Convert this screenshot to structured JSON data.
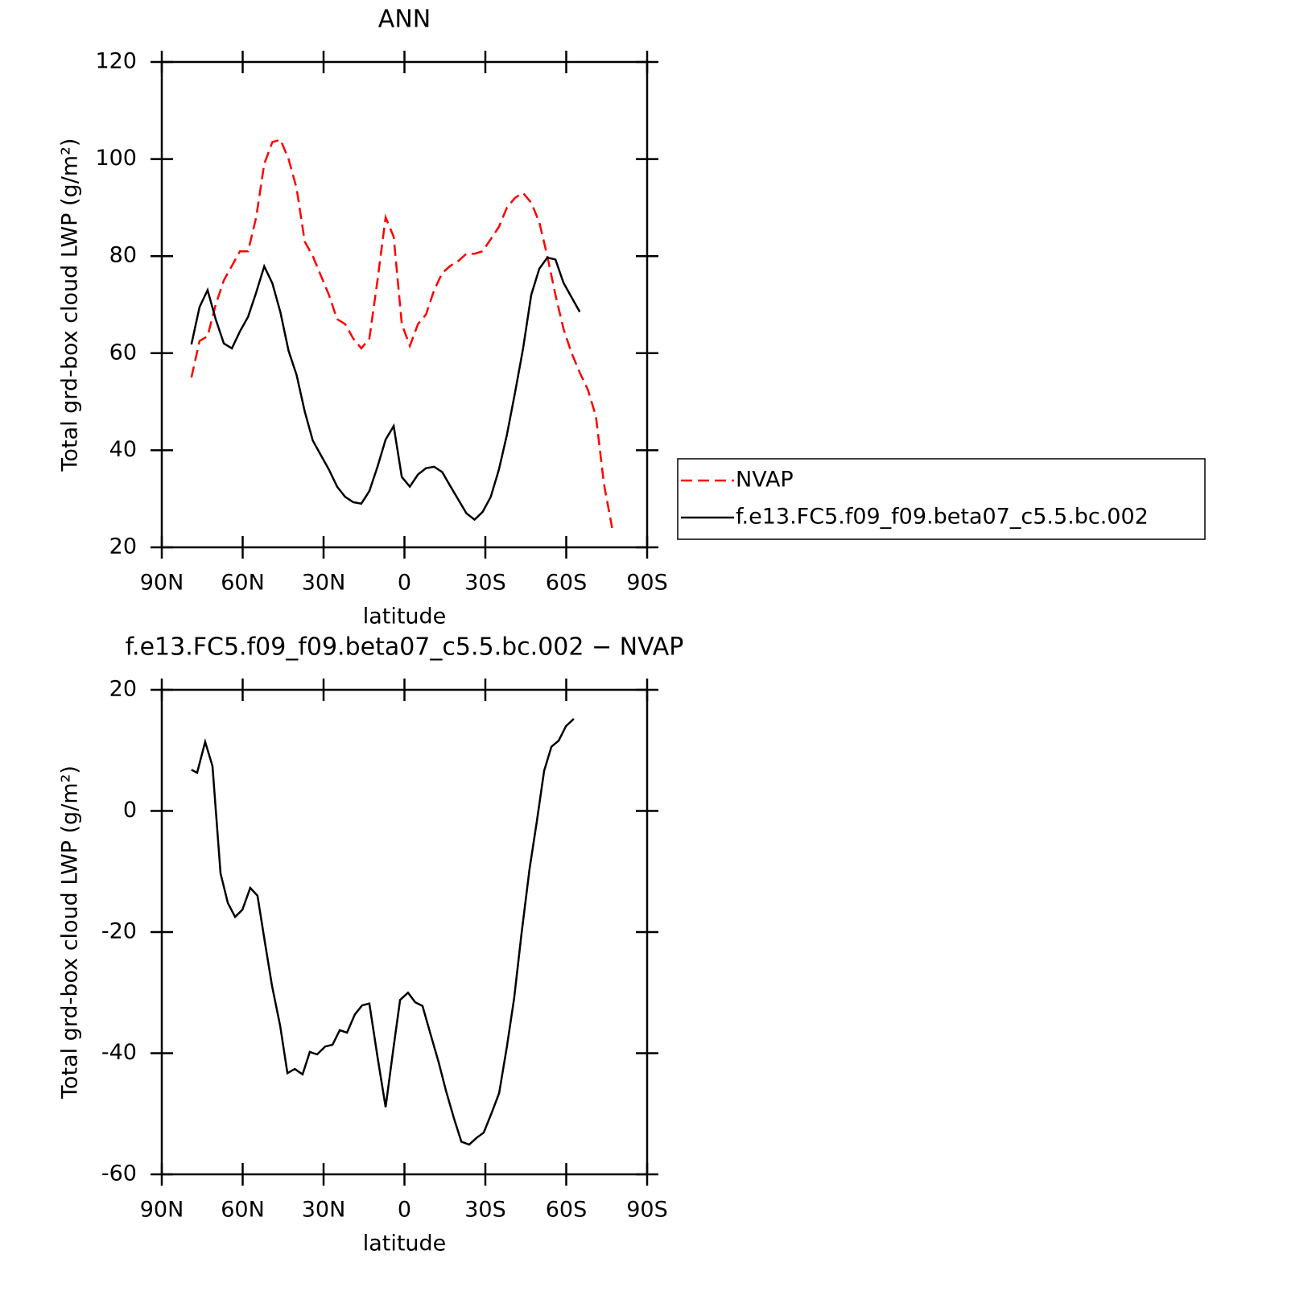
{
  "chart_data": [
    {
      "type": "line",
      "title": "ANN",
      "xlabel": "latitude",
      "ylabel": "Total grd-box cloud LWP (g/m²)",
      "x": [
        79,
        76,
        73,
        70,
        67,
        64,
        61,
        58,
        55,
        52,
        49,
        46,
        43,
        40,
        37,
        34,
        31,
        28,
        25,
        22,
        19,
        16,
        13,
        10,
        7,
        4,
        1,
        -2,
        -5,
        -8,
        -11,
        -14,
        -17,
        -20,
        -23,
        -26,
        -29,
        -32,
        -35,
        -38,
        -41,
        -44,
        -47,
        -50,
        -53,
        -56,
        -59,
        -62,
        -65,
        -68,
        -71,
        -74,
        -77
      ],
      "xlim": [
        90,
        -90
      ],
      "xticks": [
        {
          "value": 90,
          "label": "90N"
        },
        {
          "value": 60,
          "label": "60N"
        },
        {
          "value": 30,
          "label": "30N"
        },
        0,
        {
          "value": -30,
          "label": "30S"
        },
        {
          "value": -60,
          "label": "60S"
        },
        {
          "value": -90,
          "label": "90S"
        }
      ],
      "ylim": [
        20,
        120
      ],
      "yticks": [
        20,
        40,
        60,
        80,
        100,
        120
      ],
      "legend": "right",
      "series": [
        {
          "name": "NVAP",
          "color": "#ff0000",
          "linestyle": "dashed",
          "values": [
            55,
            62.5,
            63.5,
            70,
            75,
            78,
            81,
            81,
            88,
            99,
            103.5,
            104,
            100,
            94,
            83,
            80,
            76,
            72,
            67,
            66,
            63,
            61,
            63,
            75,
            88,
            84,
            66,
            61.5,
            66,
            68,
            73,
            76.5,
            78,
            79,
            80.5,
            80.5,
            81,
            83.5,
            86,
            90,
            92,
            93,
            91,
            87,
            80,
            72,
            65,
            60,
            56,
            52.5,
            47,
            33,
            24
          ]
        },
        {
          "name": "f.e13.FC5.f09_f09.beta07_c5.5.bc.002",
          "color": "#000000",
          "linestyle": "solid",
          "values": [
            61.8,
            69.5,
            73,
            67,
            62,
            61,
            64.5,
            67.5,
            72.5,
            77.9,
            74.4,
            68.4,
            60.5,
            55.5,
            48,
            42,
            39,
            36,
            32.5,
            30.4,
            29.3,
            29,
            31.6,
            36.6,
            42.2,
            45,
            34.5,
            32.5,
            35,
            36.3,
            36.6,
            35.5,
            32.6,
            29.8,
            27,
            25.7,
            27.3,
            30.4,
            36,
            43.2,
            51.8,
            61,
            72,
            77.4,
            79.7,
            79.3,
            74.5,
            71.5,
            68.5,
            null,
            null,
            null,
            null
          ]
        }
      ]
    },
    {
      "type": "line",
      "title": "f.e13.FC5.f09_f09.beta07_c5.5.bc.002 − NVAP",
      "xlabel": "latitude",
      "ylabel": "Total grd-box cloud LWP (g/m²)",
      "x": [
        79,
        76.9,
        73.9,
        71.2,
        68.2,
        65.5,
        62.8,
        60.1,
        57.2,
        54.5,
        51.8,
        49.1,
        46.1,
        43.4,
        40.7,
        37.8,
        35.1,
        32.4,
        29.4,
        26.7,
        24,
        21.3,
        18.4,
        15.7,
        13,
        10,
        7,
        4,
        1.6,
        -1.3,
        -4,
        -6.7,
        -9.7,
        -12.7,
        -15.4,
        -18.4,
        -21.1,
        -24,
        -26.7,
        -29.4,
        -32.4,
        -35.1,
        -38,
        -40.7,
        -43.4,
        -46.4,
        -49.1,
        -51.8,
        -54.5,
        -57.2,
        -59.9,
        -62.8
      ],
      "xlim": [
        90,
        -90
      ],
      "xticks": [
        {
          "value": 90,
          "label": "90N"
        },
        {
          "value": 60,
          "label": "60N"
        },
        {
          "value": 30,
          "label": "30N"
        },
        0,
        {
          "value": -30,
          "label": "30S"
        },
        {
          "value": -60,
          "label": "60S"
        },
        {
          "value": -90,
          "label": "90S"
        }
      ],
      "ylim": [
        -60,
        20
      ],
      "yticks": [
        -60,
        -40,
        -20,
        0,
        20
      ],
      "series": [
        {
          "color": "#000000",
          "linestyle": "solid",
          "values": [
            6.8,
            6.3,
            11.4,
            7.4,
            -10.3,
            -15.2,
            -17.5,
            -16.3,
            -12.7,
            -14,
            -21.6,
            -28.9,
            -35.5,
            -43.3,
            -42.6,
            -43.5,
            -39.8,
            -40.2,
            -38.9,
            -38.6,
            -36.2,
            -36.6,
            -33.6,
            -32.1,
            -31.8,
            -40.6,
            -48.9,
            -38.9,
            -31.2,
            -30,
            -31.6,
            -32.2,
            -36.9,
            -41.5,
            -46.2,
            -50.8,
            -54.6,
            -55.1,
            -54,
            -53.1,
            -49.8,
            -46.6,
            -38.9,
            -30.9,
            -20.3,
            -9.6,
            -1.7,
            6.6,
            10.6,
            11.6,
            14,
            15.2
          ]
        }
      ]
    }
  ]
}
